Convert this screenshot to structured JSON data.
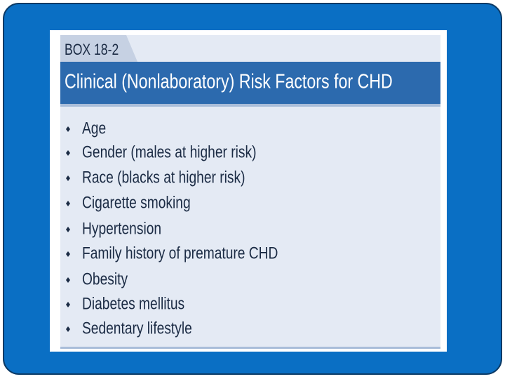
{
  "box": {
    "label": "BOX 18-2",
    "title": "Clinical (Nonlaboratory) Risk Factors for CHD",
    "items": [
      "Age",
      "Gender (males at higher risk)",
      "Race (blacks at higher risk)",
      "Cigarette smoking",
      "Hypertension",
      "Family history of premature CHD",
      "Obesity",
      "Diabetes mellitus",
      "Sedentary lifestyle"
    ]
  }
}
